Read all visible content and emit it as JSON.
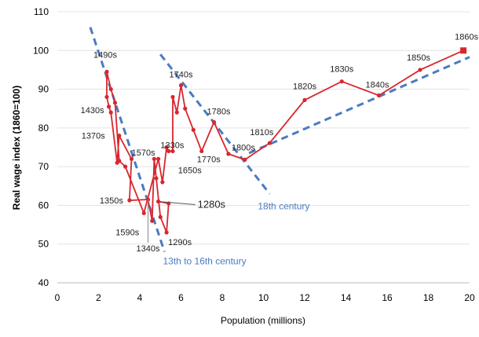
{
  "chart_data": {
    "type": "line",
    "title": "",
    "xlabel": "Population (millions)",
    "ylabel": "Real wage index (1860=100)",
    "xlim": [
      0,
      20
    ],
    "ylim": [
      40,
      110
    ],
    "xticks": [
      0,
      2,
      4,
      6,
      8,
      10,
      12,
      14,
      16,
      18,
      20
    ],
    "yticks": [
      40,
      50,
      60,
      70,
      80,
      90,
      100,
      110
    ],
    "grid": "horizontal",
    "series_color": "#d9262e",
    "trend_color": "#4a7bbf",
    "points": [
      {
        "x": 4.9,
        "y": 61,
        "label": "1280s"
      },
      {
        "x": 5.4,
        "y": 60.5
      },
      {
        "x": 5.3,
        "y": 53,
        "label": "1290s"
      },
      {
        "x": 5.0,
        "y": 57
      },
      {
        "x": 4.8,
        "y": 67
      },
      {
        "x": 4.7,
        "y": 72,
        "label": "1330s"
      },
      {
        "x": 4.6,
        "y": 56
      },
      {
        "x": 4.4,
        "y": 61.5,
        "label": "1340s"
      },
      {
        "x": 3.5,
        "y": 61.3,
        "label": "1350s"
      },
      {
        "x": 3.6,
        "y": 72
      },
      {
        "x": 3.0,
        "y": 78,
        "label": "1370s"
      },
      {
        "x": 2.9,
        "y": 71
      },
      {
        "x": 2.6,
        "y": 84
      },
      {
        "x": 2.5,
        "y": 85.5,
        "label": "1430s"
      },
      {
        "x": 2.4,
        "y": 88
      },
      {
        "x": 2.4,
        "y": 94.5,
        "label": "1490s"
      },
      {
        "x": 2.6,
        "y": 90
      },
      {
        "x": 2.8,
        "y": 86.5
      },
      {
        "x": 3.0,
        "y": 71.5
      },
      {
        "x": 3.3,
        "y": 70,
        "label": "1570s"
      },
      {
        "x": 4.2,
        "y": 58,
        "label": "1590s"
      },
      {
        "x": 4.9,
        "y": 72
      },
      {
        "x": 5.1,
        "y": 66
      },
      {
        "x": 5.3,
        "y": 75
      },
      {
        "x": 5.4,
        "y": 74,
        "label": "1650s"
      },
      {
        "x": 5.6,
        "y": 74
      },
      {
        "x": 5.6,
        "y": 88
      },
      {
        "x": 5.8,
        "y": 84
      },
      {
        "x": 6.0,
        "y": 91,
        "label": "1740s"
      },
      {
        "x": 6.2,
        "y": 85
      },
      {
        "x": 6.6,
        "y": 79.5
      },
      {
        "x": 7.0,
        "y": 74,
        "label": "1770s"
      },
      {
        "x": 7.6,
        "y": 81.5,
        "label": "1780s"
      },
      {
        "x": 8.3,
        "y": 73.3
      },
      {
        "x": 9.1,
        "y": 71.8,
        "label": "1800s"
      },
      {
        "x": 10.3,
        "y": 76.1,
        "label": "1810s"
      },
      {
        "x": 12.0,
        "y": 87.2,
        "label": "1820s"
      },
      {
        "x": 13.8,
        "y": 92,
        "label": "1830s"
      },
      {
        "x": 15.6,
        "y": 88.4,
        "label": "1840s"
      },
      {
        "x": 17.6,
        "y": 95,
        "label": "1850s"
      },
      {
        "x": 19.7,
        "y": 100,
        "label": "1860s"
      }
    ],
    "trend_lines": [
      {
        "label": "13th to 16th century",
        "from": [
          1.6,
          106
        ],
        "to": [
          5.2,
          48
        ]
      },
      {
        "label": "18th century",
        "from": [
          5.0,
          99
        ],
        "to": [
          10.3,
          63
        ]
      },
      {
        "label": "",
        "from": [
          9.3,
          73.5
        ],
        "to": [
          20,
          98.3
        ]
      }
    ]
  }
}
